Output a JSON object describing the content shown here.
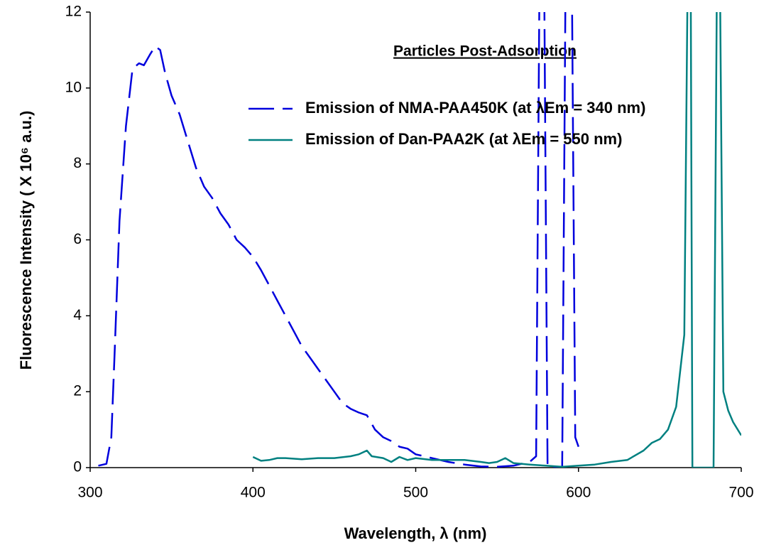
{
  "chart_data": {
    "type": "line",
    "title": "Particles Post-Adsorption",
    "x_label": "Wavelength, λ (nm)",
    "y_label": "Fluorescence Intensity ( X 10⁶ a.u.)",
    "xlim": [
      300,
      700
    ],
    "ylim": [
      0,
      12
    ],
    "xticks": [
      300,
      400,
      500,
      600,
      700
    ],
    "yticks": [
      0,
      2,
      4,
      6,
      8,
      10,
      12
    ],
    "grid": false,
    "legend": "top-right",
    "series": [
      {
        "name": "Emission of NMA-PAA450K (at λEm = 340 nm)",
        "color": "#0000dd",
        "dashed": true,
        "x": [
          305,
          310,
          313,
          315,
          318,
          322,
          326,
          330,
          333,
          337,
          340,
          343,
          346,
          350,
          355,
          360,
          365,
          370,
          375,
          380,
          385,
          390,
          395,
          400,
          405,
          410,
          415,
          420,
          425,
          430,
          435,
          440,
          445,
          450,
          455,
          460,
          465,
          470,
          475,
          480,
          485,
          490,
          495,
          500,
          510,
          520,
          530,
          540,
          550,
          560,
          570,
          574,
          576,
          579,
          581,
          590,
          592,
          596,
          598,
          600
        ],
        "values": [
          0.05,
          0.1,
          0.8,
          3,
          6.5,
          9,
          10.5,
          10.65,
          10.6,
          10.9,
          11.1,
          11.0,
          10.4,
          9.8,
          9.3,
          8.6,
          7.9,
          7.4,
          7.1,
          6.7,
          6.4,
          6.0,
          5.8,
          5.55,
          5.2,
          4.8,
          4.4,
          4.0,
          3.6,
          3.2,
          2.9,
          2.6,
          2.3,
          2.0,
          1.7,
          1.55,
          1.45,
          1.38,
          1.0,
          0.8,
          0.7,
          0.55,
          0.5,
          0.35,
          0.25,
          0.15,
          0.08,
          0.03,
          0.02,
          0.05,
          0.15,
          0.3,
          12.5,
          12.5,
          0.02,
          0.0,
          12.5,
          12.5,
          0.8,
          0.55
        ]
      },
      {
        "name": "Emission of Dan-PAA2K (at λEm = 550 nm)",
        "color": "#008080",
        "dashed": false,
        "x": [
          400,
          405,
          410,
          415,
          420,
          430,
          440,
          450,
          460,
          465,
          470,
          473,
          480,
          485,
          490,
          495,
          500,
          510,
          520,
          530,
          540,
          545,
          550,
          555,
          560,
          570,
          580,
          590,
          600,
          610,
          620,
          630,
          640,
          645,
          650,
          655,
          660,
          665,
          667,
          669,
          670,
          683,
          685,
          687,
          689,
          692,
          695,
          700
        ],
        "values": [
          0.28,
          0.18,
          0.2,
          0.25,
          0.25,
          0.22,
          0.25,
          0.25,
          0.3,
          0.35,
          0.45,
          0.3,
          0.25,
          0.15,
          0.28,
          0.2,
          0.25,
          0.2,
          0.2,
          0.2,
          0.15,
          0.12,
          0.15,
          0.25,
          0.12,
          0.08,
          0.05,
          0.02,
          0.05,
          0.08,
          0.15,
          0.2,
          0.45,
          0.65,
          0.75,
          1.0,
          1.6,
          3.5,
          12.5,
          12.5,
          0.0,
          0.0,
          12.5,
          12.5,
          2.0,
          1.5,
          1.2,
          0.85
        ]
      }
    ]
  }
}
